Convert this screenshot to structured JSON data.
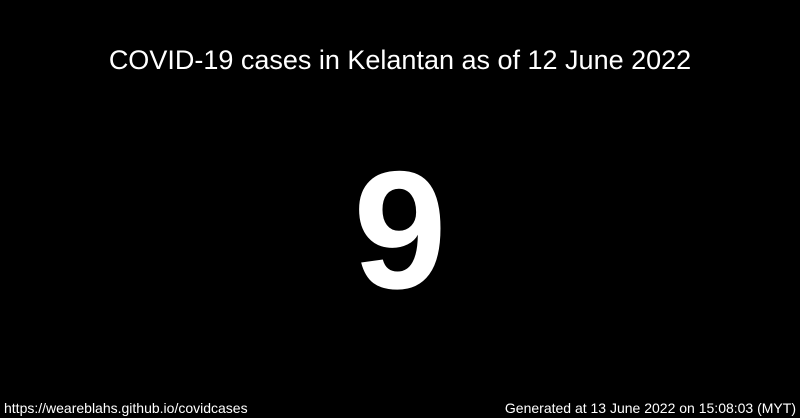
{
  "title": "COVID-19 cases in Kelantan as of 12 June 2022",
  "case_count": "9",
  "footer": {
    "url": "https://weareblahs.github.io/covidcases",
    "generated": "Generated at 13 June 2022 on 15:08:03 (MYT)"
  },
  "colors": {
    "background": "#000000",
    "text": "#ffffff"
  }
}
